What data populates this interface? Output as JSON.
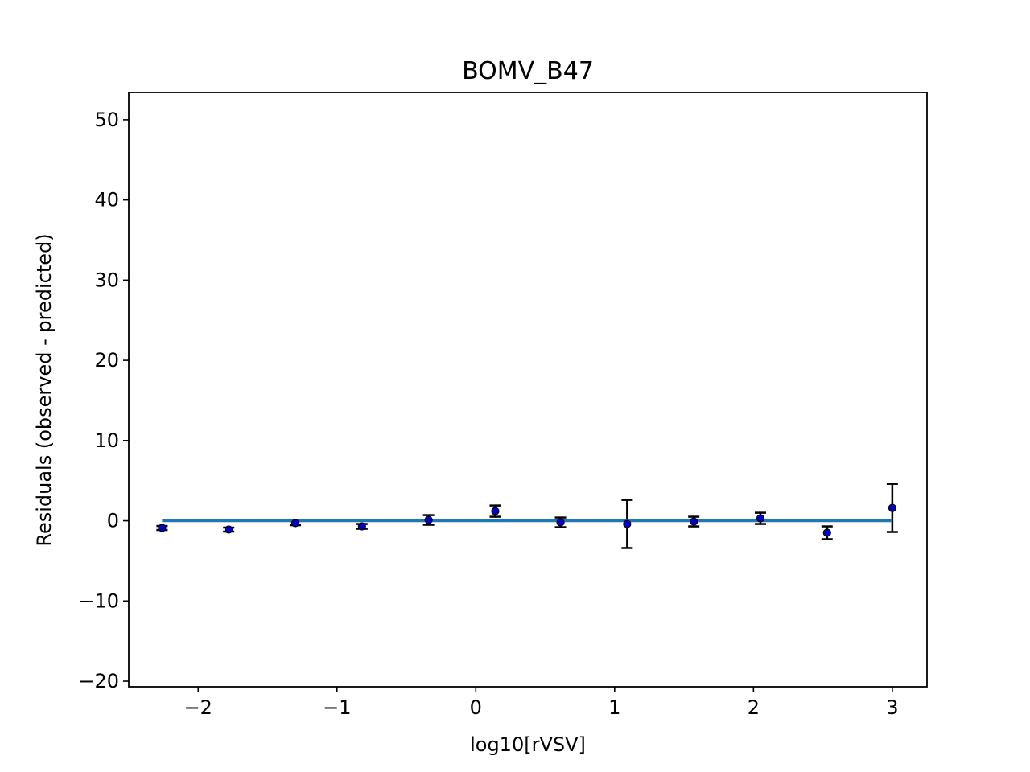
{
  "chart_data": {
    "type": "scatter",
    "title": "BOMV_B47",
    "xlabel": "log10[rVSV]",
    "ylabel": "Residuals (observed - predicted)",
    "xlim": [
      -2.5,
      3.25
    ],
    "ylim": [
      -20.7,
      53.4
    ],
    "xticks": [
      -2,
      -1,
      0,
      1,
      2,
      3
    ],
    "xtick_labels": [
      "−2",
      "−1",
      "0",
      "1",
      "2",
      "3"
    ],
    "yticks": [
      -20,
      -10,
      0,
      10,
      20,
      30,
      40,
      50
    ],
    "ytick_labels": [
      "−20",
      "−10",
      "0",
      "10",
      "20",
      "30",
      "40",
      "50"
    ],
    "grid": false,
    "series": [
      {
        "kind": "errorbar-points",
        "color": "#0000cc",
        "points": [
          {
            "x": -2.26,
            "y": -0.9,
            "err": 0.25
          },
          {
            "x": -1.78,
            "y": -1.1,
            "err": 0.25
          },
          {
            "x": -1.3,
            "y": -0.3,
            "err": 0.25
          },
          {
            "x": -0.82,
            "y": -0.7,
            "err": 0.3
          },
          {
            "x": -0.34,
            "y": 0.1,
            "err": 0.6
          },
          {
            "x": 0.14,
            "y": 1.2,
            "err": 0.7
          },
          {
            "x": 0.61,
            "y": -0.2,
            "err": 0.6
          },
          {
            "x": 1.09,
            "y": -0.4,
            "err": 3.0
          },
          {
            "x": 1.57,
            "y": -0.1,
            "err": 0.6
          },
          {
            "x": 2.05,
            "y": 0.3,
            "err": 0.7
          },
          {
            "x": 2.53,
            "y": -1.5,
            "err": 0.8
          },
          {
            "x": 3.0,
            "y": 1.6,
            "err": 3.0
          }
        ]
      },
      {
        "kind": "line",
        "color": "#1f77b4",
        "x": [
          -2.26,
          3.0
        ],
        "y": [
          0,
          0
        ]
      }
    ]
  }
}
